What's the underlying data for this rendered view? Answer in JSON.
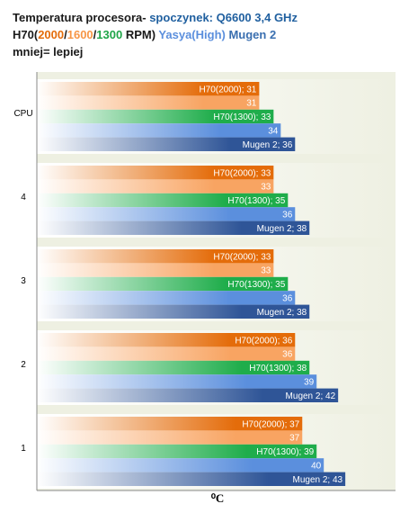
{
  "chart_data": {
    "type": "hbar",
    "title_lines": [
      [
        {
          "text": "Temperatura procesora- ",
          "color": "#1a1a1a"
        },
        {
          "text": "spoczynek: Q6600 3,4 GHz",
          "color": "#1f5f9f"
        }
      ],
      [
        {
          "text": "H70(",
          "color": "#1a1a1a"
        },
        {
          "text": "2000",
          "color": "#e46c0a"
        },
        {
          "text": "/",
          "color": "#1a1a1a"
        },
        {
          "text": "1600",
          "color": "#f79646"
        },
        {
          "text": "/",
          "color": "#1a1a1a"
        },
        {
          "text": "1300",
          "color": "#1fa548"
        },
        {
          "text": " RPM)",
          "color": "#1a1a1a"
        },
        {
          "text": " Yasya(High)",
          "color": "#5b8fdd"
        },
        {
          "text": " Mugen 2",
          "color": "#3a6fb0"
        }
      ],
      [
        {
          "text": "mniej= lepiej",
          "color": "#1a1a1a"
        }
      ]
    ],
    "xlabel": "⁰C",
    "categories": [
      "CPU",
      "4",
      "3",
      "2",
      "1"
    ],
    "xlim": [
      0,
      50
    ],
    "series": [
      {
        "color": "#e46c0a",
        "values": [
          31,
          33,
          33,
          36,
          37
        ],
        "value_labels": [
          "H70(2000); 31",
          "H70(2000); 33",
          "H70(2000); 33",
          "H70(2000); 36",
          "H70(2000); 37"
        ]
      },
      {
        "color": "#f8a462",
        "values": [
          31,
          33,
          33,
          36,
          37
        ],
        "value_labels": [
          "31",
          "33",
          "33",
          "36",
          "37"
        ]
      },
      {
        "color": "#1fad4b",
        "values": [
          33,
          35,
          35,
          38,
          39
        ],
        "value_labels": [
          "H70(1300); 33",
          "H70(1300); 35",
          "H70(1300); 35",
          "H70(1300); 38",
          "H70(1300); 39"
        ]
      },
      {
        "color": "#5b8fdd",
        "values": [
          34,
          36,
          36,
          39,
          40
        ],
        "value_labels": [
          "34",
          "36",
          "36",
          "39",
          "40"
        ]
      },
      {
        "color": "#2f5597",
        "values": [
          36,
          38,
          38,
          42,
          43
        ],
        "value_labels": [
          "Mugen 2; 36",
          "Mugen 2; 38",
          "Mugen 2; 38",
          "Mugen 2; 42",
          "Mugen 2; 43"
        ]
      }
    ]
  }
}
